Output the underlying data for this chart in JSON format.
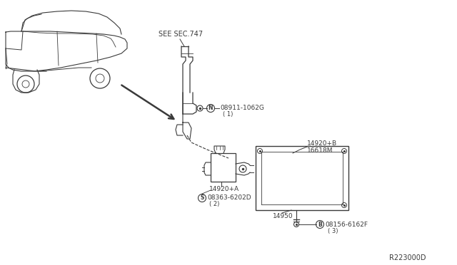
{
  "bg_color": "#ffffff",
  "line_color": "#3a3a3a",
  "text_color": "#3a3a3a",
  "fig_width": 6.4,
  "fig_height": 3.72,
  "dpi": 100,
  "diagram_ref": "R223000D",
  "labels": {
    "see_sec": "SEE SEC.747",
    "part1_num": "08911-1062G",
    "part1_qty": "( 1)",
    "part2a_num": "14920+A",
    "part2b_num": "14920+B",
    "part3_num": "16618M",
    "part4_num": "08363-6202D",
    "part4_qty": "( 2)",
    "part5_num": "14950",
    "part6_num": "08156-6162F",
    "part6_qty": "( 3)"
  }
}
